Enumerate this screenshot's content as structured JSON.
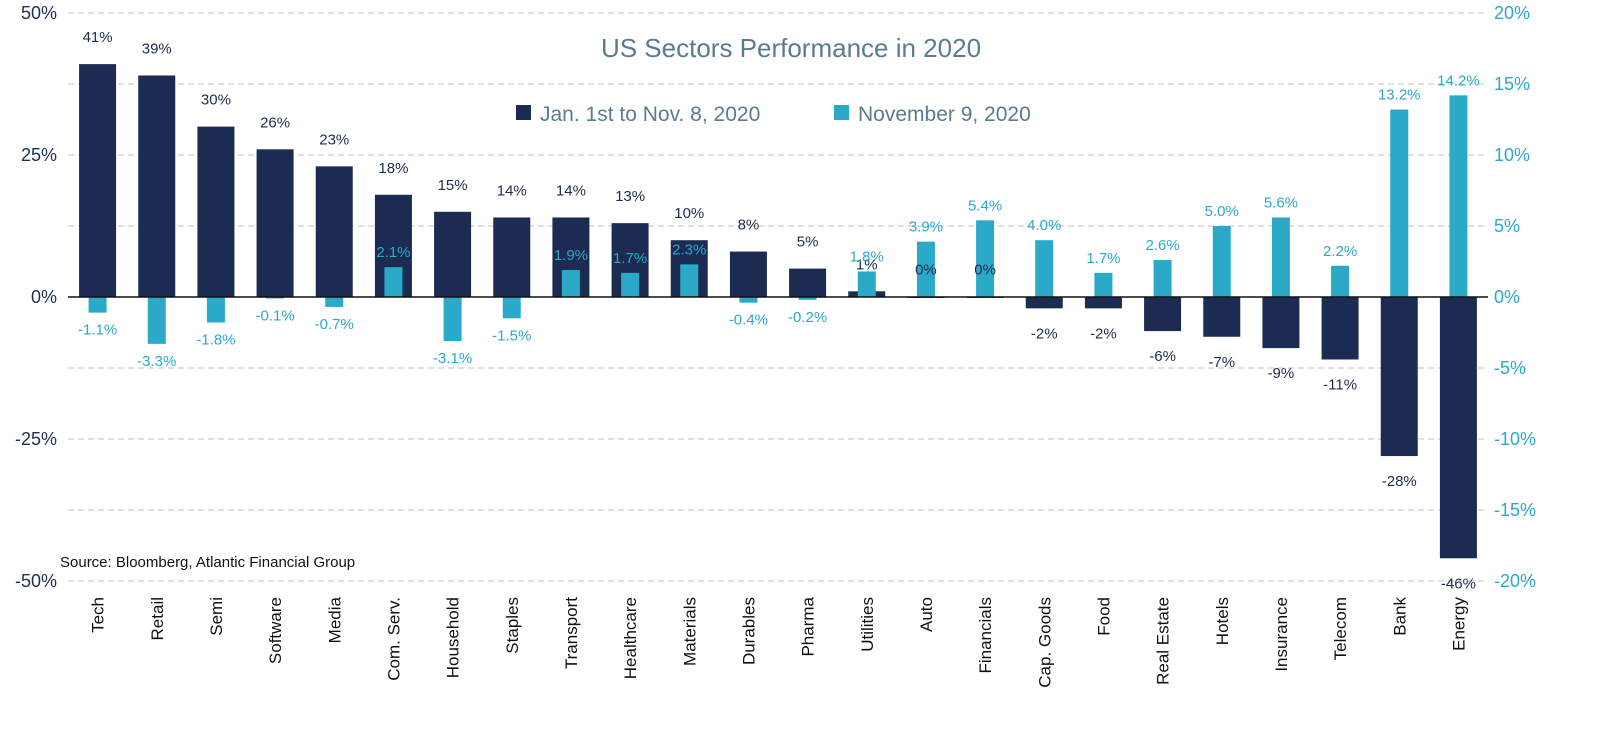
{
  "chart_data": {
    "type": "bar",
    "title": "US Sectors Performance in 2020",
    "source": "Source: Bloomberg, Atlantic Financial Group",
    "categories": [
      "Tech",
      "Retail",
      "Semi",
      "Software",
      "Media",
      "Com. Serv.",
      "Household",
      "Staples",
      "Transport",
      "Healthcare",
      "Materials",
      "Durables",
      "Pharma",
      "Utilities",
      "Auto",
      "Financials",
      "Cap. Goods",
      "Food",
      "Real Estate",
      "Hotels",
      "Insurance",
      "Telecom",
      "Bank",
      "Energy"
    ],
    "series": [
      {
        "name": "Jan. 1st to Nov. 8, 2020",
        "axis": "left",
        "color": "#1b2b52",
        "values": [
          41,
          39,
          30,
          26,
          23,
          18,
          15,
          14,
          14,
          13,
          10,
          8,
          5,
          1,
          0.1,
          0.1,
          -2,
          -2,
          -6,
          -7,
          -9,
          -11,
          -28,
          -46
        ],
        "labels": [
          "41%",
          "39%",
          "30%",
          "26%",
          "23%",
          "18%",
          "15%",
          "14%",
          "14%",
          "13%",
          "10%",
          "8%",
          "5%",
          "1%",
          "0%",
          "0%",
          "-2%",
          "-2%",
          "-6%",
          "-7%",
          "-9%",
          "-11%",
          "-28%",
          "-46%"
        ]
      },
      {
        "name": "November 9, 2020",
        "axis": "right",
        "color": "#2aa9c9",
        "values": [
          -1.1,
          -3.3,
          -1.8,
          -0.1,
          -0.7,
          2.1,
          -3.1,
          -1.5,
          1.9,
          1.7,
          2.3,
          -0.4,
          -0.2,
          1.8,
          3.9,
          5.4,
          4.0,
          1.7,
          2.6,
          5.0,
          5.6,
          2.2,
          13.2,
          14.2
        ],
        "labels": [
          "-1.1%",
          "-3.3%",
          "-1.8%",
          "-0.1%",
          "-0.7%",
          "2.1%",
          "-3.1%",
          "-1.5%",
          "1.9%",
          "1.7%",
          "2.3%",
          "-0.4%",
          "-0.2%",
          "1.8%",
          "3.9%",
          "5.4%",
          "4.0%",
          "1.7%",
          "2.6%",
          "5.0%",
          "5.6%",
          "2.2%",
          "13.2%",
          "14.2%"
        ]
      }
    ],
    "y_left": {
      "ylim": [
        -50,
        50
      ],
      "ticks": [
        50,
        25,
        0,
        -25,
        -50
      ],
      "tick_labels": [
        "50%",
        "25%",
        "0%",
        "-25%",
        "-50%"
      ]
    },
    "y_right": {
      "ylim": [
        -20,
        20
      ],
      "ticks": [
        20,
        15,
        10,
        5,
        0,
        -5,
        -10,
        -15,
        -20
      ],
      "tick_labels": [
        "20%",
        "15%",
        "10%",
        "5%",
        "0%",
        "-5%",
        "-10%",
        "-15%",
        "-20%"
      ]
    },
    "grid": true,
    "legend_position": "top-center"
  }
}
